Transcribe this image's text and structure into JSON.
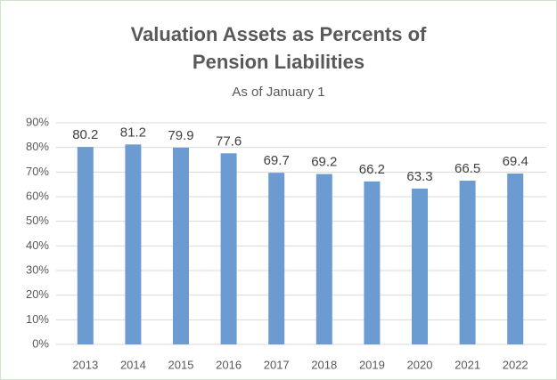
{
  "chart_data": {
    "type": "bar",
    "title": "Valuation Assets as Percents of Pension Liabilities",
    "subtitle": "As of January 1",
    "categories": [
      "2013",
      "2014",
      "2015",
      "2016",
      "2017",
      "2018",
      "2019",
      "2020",
      "2021",
      "2022"
    ],
    "values": [
      80.2,
      81.2,
      79.9,
      77.6,
      69.7,
      69.2,
      66.2,
      63.3,
      66.5,
      69.4
    ],
    "color": "#6b9bd1",
    "ylim": [
      0,
      90
    ],
    "yticks": [
      {
        "value": 0,
        "label": "0%"
      },
      {
        "value": 10,
        "label": "10%"
      },
      {
        "value": 20,
        "label": "20%"
      },
      {
        "value": 30,
        "label": "30%"
      },
      {
        "value": 40,
        "label": "40%"
      },
      {
        "value": 50,
        "label": "50%"
      },
      {
        "value": 60,
        "label": "60%"
      },
      {
        "value": 70,
        "label": "70%"
      },
      {
        "value": 80,
        "label": "80%"
      },
      {
        "value": 90,
        "label": "90%"
      }
    ],
    "grid": true
  }
}
